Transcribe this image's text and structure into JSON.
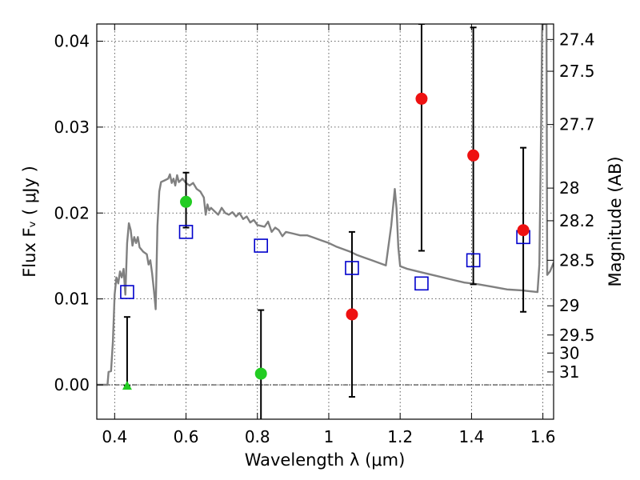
{
  "chart_data": {
    "type": "scatter",
    "title": "",
    "xlabel": "Wavelength  λ (μm)",
    "ylabel": "Flux  Fᵥ  ( μJy )",
    "ylabel_right": "Magnitude (AB)",
    "xlim": [
      0.35,
      1.63
    ],
    "ylim": [
      -0.004,
      0.042
    ],
    "grid": true,
    "x_ticks": [
      0.4,
      0.6,
      0.8,
      1.0,
      1.2,
      1.4,
      1.6
    ],
    "x_tick_labels": [
      "0.4",
      "0.6",
      "0.8",
      "1",
      "1.2",
      "1.4",
      "1.6"
    ],
    "y_ticks": [
      0.0,
      0.01,
      0.02,
      0.03,
      0.04
    ],
    "y_tick_labels": [
      "0.00",
      "0.01",
      "0.02",
      "0.03",
      "0.04"
    ],
    "right_ticks": [
      {
        "flux": 0.0402,
        "label": "27.4"
      },
      {
        "flux": 0.0365,
        "label": "27.5"
      },
      {
        "flux": 0.0303,
        "label": "27.7"
      },
      {
        "flux": 0.0229,
        "label": "28"
      },
      {
        "flux": 0.0191,
        "label": "28.2"
      },
      {
        "flux": 0.0145,
        "label": "28.5"
      },
      {
        "flux": 0.0092,
        "label": "29"
      },
      {
        "flux": 0.0058,
        "label": "29.5"
      },
      {
        "flux": 0.0037,
        "label": "30"
      },
      {
        "flux": 0.0015,
        "label": "31"
      }
    ],
    "colors": {
      "model": "#808080",
      "model_photometry": "#0000cc",
      "detections": "#22cc22",
      "red_points": "#ee1111",
      "errorbar": "#000000",
      "zero_line": "#000000"
    },
    "series": [
      {
        "type": "line",
        "points": [
          [
            0.35,
            0.0
          ],
          [
            0.38,
            0.0
          ],
          [
            0.383,
            0.0015
          ],
          [
            0.39,
            0.0016
          ],
          [
            0.395,
            0.005
          ],
          [
            0.4,
            0.0105
          ],
          [
            0.405,
            0.0125
          ],
          [
            0.41,
            0.0118
          ],
          [
            0.415,
            0.0132
          ],
          [
            0.42,
            0.0125
          ],
          [
            0.425,
            0.0135
          ],
          [
            0.43,
            0.0105
          ],
          [
            0.435,
            0.0165
          ],
          [
            0.44,
            0.0188
          ],
          [
            0.445,
            0.018
          ],
          [
            0.45,
            0.0162
          ],
          [
            0.455,
            0.0172
          ],
          [
            0.46,
            0.0165
          ],
          [
            0.465,
            0.0172
          ],
          [
            0.47,
            0.016
          ],
          [
            0.48,
            0.0155
          ],
          [
            0.49,
            0.0152
          ],
          [
            0.495,
            0.014
          ],
          [
            0.5,
            0.0145
          ],
          [
            0.505,
            0.013
          ],
          [
            0.51,
            0.011
          ],
          [
            0.515,
            0.0088
          ],
          [
            0.52,
            0.0185
          ],
          [
            0.525,
            0.0225
          ],
          [
            0.53,
            0.0236
          ],
          [
            0.54,
            0.0238
          ],
          [
            0.55,
            0.024
          ],
          [
            0.555,
            0.0245
          ],
          [
            0.56,
            0.0235
          ],
          [
            0.565,
            0.024
          ],
          [
            0.57,
            0.0232
          ],
          [
            0.575,
            0.0244
          ],
          [
            0.58,
            0.0236
          ],
          [
            0.59,
            0.024
          ],
          [
            0.6,
            0.0235
          ],
          [
            0.61,
            0.0232
          ],
          [
            0.62,
            0.0235
          ],
          [
            0.63,
            0.0228
          ],
          [
            0.64,
            0.0225
          ],
          [
            0.65,
            0.0218
          ],
          [
            0.655,
            0.0198
          ],
          [
            0.66,
            0.021
          ],
          [
            0.665,
            0.0203
          ],
          [
            0.67,
            0.0206
          ],
          [
            0.68,
            0.0202
          ],
          [
            0.69,
            0.0198
          ],
          [
            0.7,
            0.0206
          ],
          [
            0.71,
            0.02
          ],
          [
            0.72,
            0.0198
          ],
          [
            0.73,
            0.0201
          ],
          [
            0.74,
            0.0196
          ],
          [
            0.75,
            0.02
          ],
          [
            0.76,
            0.0193
          ],
          [
            0.77,
            0.0196
          ],
          [
            0.78,
            0.0189
          ],
          [
            0.79,
            0.0192
          ],
          [
            0.8,
            0.0186
          ],
          [
            0.82,
            0.0184
          ],
          [
            0.83,
            0.019
          ],
          [
            0.84,
            0.0178
          ],
          [
            0.85,
            0.0183
          ],
          [
            0.86,
            0.018
          ],
          [
            0.87,
            0.0173
          ],
          [
            0.88,
            0.0178
          ],
          [
            0.9,
            0.0176
          ],
          [
            0.92,
            0.0174
          ],
          [
            0.94,
            0.0174
          ],
          [
            0.96,
            0.0171
          ],
          [
            0.98,
            0.0168
          ],
          [
            1.0,
            0.0165
          ],
          [
            1.02,
            0.0161
          ],
          [
            1.04,
            0.0158
          ],
          [
            1.06,
            0.0155
          ],
          [
            1.08,
            0.0151
          ],
          [
            1.1,
            0.0148
          ],
          [
            1.12,
            0.0145
          ],
          [
            1.14,
            0.0142
          ],
          [
            1.16,
            0.0139
          ],
          [
            1.175,
            0.0185
          ],
          [
            1.185,
            0.0228
          ],
          [
            1.19,
            0.0205
          ],
          [
            1.195,
            0.016
          ],
          [
            1.2,
            0.0138
          ],
          [
            1.22,
            0.0135
          ],
          [
            1.26,
            0.0131
          ],
          [
            1.3,
            0.0127
          ],
          [
            1.34,
            0.0123
          ],
          [
            1.38,
            0.0119
          ],
          [
            1.42,
            0.0117
          ],
          [
            1.46,
            0.0114
          ],
          [
            1.5,
            0.0111
          ],
          [
            1.54,
            0.011
          ],
          [
            1.585,
            0.0108
          ],
          [
            1.59,
            0.014
          ],
          [
            1.595,
            0.03
          ],
          [
            1.598,
            0.042
          ],
          [
            1.61,
            0.042
          ],
          [
            1.612,
            0.0128
          ],
          [
            1.62,
            0.0132
          ],
          [
            1.63,
            0.0142
          ]
        ]
      },
      {
        "type": "scatter",
        "marker": "square",
        "points": [
          [
            0.435,
            0.0108
          ],
          [
            0.6,
            0.0178
          ],
          [
            0.81,
            0.0162
          ],
          [
            1.065,
            0.0136
          ],
          [
            1.26,
            0.0118
          ],
          [
            1.405,
            0.0145
          ],
          [
            1.545,
            0.0172
          ]
        ]
      },
      {
        "type": "scatter",
        "marker": "circle",
        "points": [
          {
            "x": 0.6,
            "y": 0.0213,
            "err_low": 0.0183,
            "err_high": 0.0247
          },
          {
            "x": 0.81,
            "y": 0.0013,
            "err_low": -0.0045,
            "err_high": 0.0087
          }
        ]
      },
      {
        "type": "scatter",
        "marker": "triangle-up",
        "points": [
          {
            "x": 0.435,
            "y": -0.0001,
            "err_low": -0.0001,
            "err_high": 0.0079
          }
        ]
      },
      {
        "type": "scatter",
        "marker": "circle",
        "points": [
          {
            "x": 1.065,
            "y": 0.0082,
            "err_low": -0.0014,
            "err_high": 0.0178
          },
          {
            "x": 1.26,
            "y": 0.0333,
            "err_low": 0.0156,
            "err_high": 0.042
          },
          {
            "x": 1.405,
            "y": 0.0267,
            "err_low": 0.0117,
            "err_high": 0.0416
          },
          {
            "x": 1.545,
            "y": 0.018,
            "err_low": 0.0085,
            "err_high": 0.0276
          }
        ]
      }
    ]
  }
}
